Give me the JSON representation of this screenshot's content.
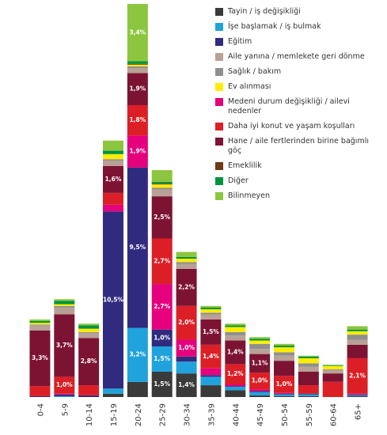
{
  "chart_data": {
    "type": "stacked-bar",
    "categories": [
      "0-4",
      "5-9",
      "10-14",
      "15-19",
      "20-24",
      "25-29",
      "30-34",
      "35-39",
      "40-44",
      "45-49",
      "50-54",
      "55-59",
      "60-64",
      "65+"
    ],
    "series": [
      {
        "name": "Tayin / iş değişikliği",
        "color": "#3a3a3a",
        "values": [
          0,
          0,
          0,
          0.2,
          0.9,
          1.5,
          1.4,
          0.7,
          0.4,
          0.1,
          0.05,
          0.05,
          0,
          0.05
        ],
        "value_labels": [
          null,
          null,
          null,
          null,
          null,
          "1,5%",
          "1,4%",
          null,
          null,
          null,
          null,
          null,
          null,
          null
        ]
      },
      {
        "name": "İşe başlamak / iş bulmak",
        "color": "#20a3dc",
        "values": [
          0,
          0.05,
          0,
          0.3,
          3.2,
          1.5,
          0.7,
          0.5,
          0.2,
          0.2,
          0.1,
          0.1,
          0,
          0.05
        ],
        "value_labels": [
          null,
          null,
          null,
          null,
          "3,2%",
          "1,5%",
          null,
          null,
          null,
          null,
          null,
          null,
          null,
          null
        ]
      },
      {
        "name": "Eğitim",
        "color": "#312b80",
        "values": [
          0.05,
          0.1,
          0.1,
          10.5,
          9.5,
          1.0,
          0.3,
          0.1,
          0.05,
          0.05,
          0.05,
          0.05,
          0,
          0.05
        ],
        "value_labels": [
          null,
          null,
          null,
          "10,5%",
          "9,5%",
          "1,0%",
          null,
          null,
          null,
          null,
          null,
          null,
          null,
          null
        ]
      },
      {
        "name": "Aile yanına / memlekete geri dönme",
        "color": "#b8a196",
        "values": [
          0.3,
          0.4,
          0.3,
          0.3,
          0.3,
          0.4,
          0.3,
          0.3,
          0.3,
          0.3,
          0.3,
          0.3,
          0.2,
          0.3
        ]
      },
      {
        "name": "Sağlık / bakım",
        "color": "#8f8f8f",
        "values": [
          0.05,
          0.1,
          0.05,
          0.1,
          0.1,
          0.1,
          0.1,
          0.1,
          0.2,
          0.3,
          0.2,
          0.2,
          0.05,
          0.3
        ]
      },
      {
        "name": "Ev alınması",
        "color": "#ffec00",
        "values": [
          0.1,
          0.1,
          0.2,
          0.3,
          0.1,
          0.2,
          0.2,
          0.2,
          0.3,
          0.2,
          0.3,
          0.3,
          0.2,
          0.2
        ]
      },
      {
        "name": "Medeni durum değişikliği / ailevi nedenler",
        "color": "#e5007d",
        "values": [
          0,
          0.05,
          0,
          0.4,
          1.9,
          2.7,
          1.0,
          0.4,
          0.1,
          0.1,
          0.05,
          0,
          0,
          0.05
        ],
        "value_labels": [
          null,
          null,
          null,
          null,
          "1,9%",
          "2,7%",
          "1,0%",
          null,
          null,
          null,
          null,
          null,
          null,
          null
        ]
      },
      {
        "name": "Daha iyi konut ve yaşam koşulları",
        "color": "#dc1f26",
        "values": [
          0.6,
          1.0,
          0.6,
          0.7,
          1.8,
          2.7,
          2.0,
          1.4,
          1.2,
          1.0,
          1.0,
          0.5,
          0.9,
          2.1
        ],
        "value_labels": [
          null,
          "1,0%",
          null,
          null,
          "1,8%",
          "2,7%",
          "2,0%",
          "1,4%",
          "1,2%",
          "1,0%",
          "1,0%",
          null,
          null,
          "2,1%"
        ]
      },
      {
        "name": "Hane / aile fertlerinden birine bağımlı göç",
        "color": "#7d1333",
        "values": [
          3.3,
          3.7,
          2.8,
          1.6,
          1.9,
          2.5,
          2.2,
          1.5,
          1.4,
          1.1,
          0.9,
          0.8,
          0.5,
          0.8
        ],
        "value_labels": [
          "3,3%",
          "3,7%",
          "2,8%",
          "1,6%",
          "1,9%",
          "2,5%",
          "2,2%",
          "1,5%",
          "1,4%",
          "1,1%",
          null,
          null,
          null,
          null
        ]
      },
      {
        "name": "Emeklilik",
        "color": "#6e3b12",
        "values": [
          0,
          0,
          0,
          0,
          0.05,
          0.05,
          0,
          0,
          0,
          0,
          0,
          0,
          0,
          0
        ]
      },
      {
        "name": "Diğer",
        "color": "#00943e",
        "values": [
          0.1,
          0.2,
          0.2,
          0.2,
          0.15,
          0.1,
          0.1,
          0.1,
          0.1,
          0.1,
          0.1,
          0.1,
          0.05,
          0.1
        ]
      },
      {
        "name": "Bilinmeyen",
        "color": "#8cc63f",
        "values": [
          0.1,
          0.1,
          0.1,
          0.6,
          3.4,
          0.7,
          0.3,
          0.1,
          0.1,
          0.1,
          0.1,
          0.05,
          0,
          0.2
        ],
        "value_labels": [
          null,
          null,
          null,
          null,
          "3,4%",
          null,
          null,
          null,
          null,
          null,
          null,
          null,
          null,
          null
        ]
      }
    ]
  }
}
